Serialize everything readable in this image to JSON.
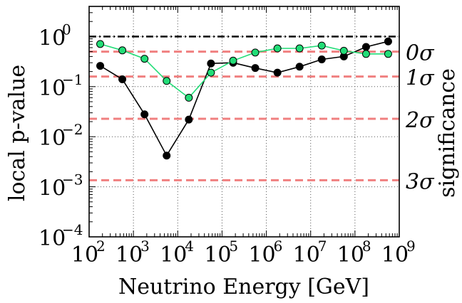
{
  "chart_data": {
    "type": "line",
    "xlabel": "Neutrino Energy [GeV]",
    "ylabel": "local p-value",
    "y2label": "significance",
    "xscale": "log",
    "yscale": "log",
    "xlim": [
      100,
      1000000000
    ],
    "ylim": [
      0.0001,
      4
    ],
    "grid": true,
    "x_tick_labels": [
      {
        "base": "10",
        "exp": "2"
      },
      {
        "base": "10",
        "exp": "3"
      },
      {
        "base": "10",
        "exp": "4"
      },
      {
        "base": "10",
        "exp": "5"
      },
      {
        "base": "10",
        "exp": "6"
      },
      {
        "base": "10",
        "exp": "7"
      },
      {
        "base": "10",
        "exp": "8"
      },
      {
        "base": "10",
        "exp": "9"
      }
    ],
    "y_tick_labels": [
      {
        "base": "10",
        "exp": "0"
      },
      {
        "base": "10",
        "exp": "−1"
      },
      {
        "base": "10",
        "exp": "−2"
      },
      {
        "base": "10",
        "exp": "−3"
      },
      {
        "base": "10",
        "exp": "−4"
      }
    ],
    "significance_levels": [
      {
        "label": "0σ",
        "p": 0.5
      },
      {
        "label": "1σ",
        "p": 0.159
      },
      {
        "label": "2σ",
        "p": 0.0228
      },
      {
        "label": "3σ",
        "p": 0.00135
      }
    ],
    "reference_line": {
      "p": 1.0,
      "color": "#000000",
      "style": "dash-dot"
    },
    "series": [
      {
        "color": "#000000",
        "marker_fill": "#000000",
        "x": [
          178,
          562,
          1780,
          5620,
          17800,
          56200,
          178000,
          562000,
          1780000,
          5620000,
          17800000,
          56200000,
          178000000,
          562000000
        ],
        "values": [
          0.26,
          0.14,
          0.028,
          0.0042,
          0.022,
          0.29,
          0.3,
          0.235,
          0.19,
          0.25,
          0.35,
          0.4,
          0.62,
          0.8
        ]
      },
      {
        "color": "#22dd77",
        "marker_fill": "#22dd77",
        "x": [
          178,
          562,
          1780,
          5620,
          17800,
          56200,
          178000,
          562000,
          1780000,
          5620000,
          17800000,
          56200000,
          178000000,
          562000000
        ],
        "values": [
          0.71,
          0.53,
          0.36,
          0.13,
          0.06,
          0.19,
          0.33,
          0.48,
          0.58,
          0.58,
          0.66,
          0.52,
          0.45,
          0.45
        ]
      }
    ],
    "colors": {
      "sigma_line": "#f08080",
      "grid": "#555555",
      "axes": "#000000"
    }
  }
}
